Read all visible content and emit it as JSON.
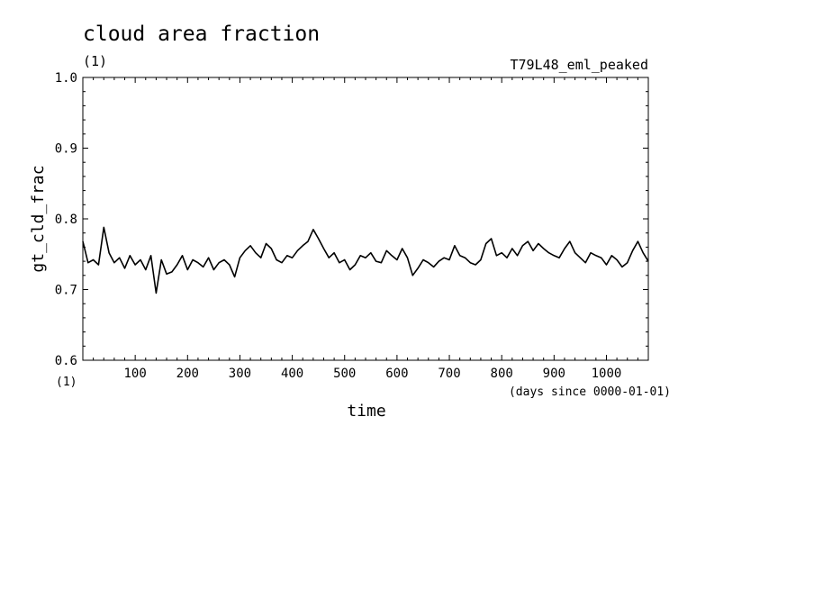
{
  "chart_data": {
    "type": "line",
    "title": "cloud area fraction",
    "units": "(1)",
    "experiment": "T79L48_eml_peaked",
    "ylabel": "gt_cld_frac",
    "y_units": "(1)",
    "xlabel": "time",
    "x_units": "(days since 0000-01-01)",
    "xlim": [
      0,
      1080
    ],
    "ylim": [
      0.6,
      1.0
    ],
    "x_ticks": [
      "100",
      "200",
      "300",
      "400",
      "500",
      "600",
      "700",
      "800",
      "900",
      "1000"
    ],
    "y_ticks": [
      "0.6",
      "0.7",
      "0.8",
      "0.9",
      "1.0"
    ],
    "grid": false,
    "series": [
      {
        "x": [
          0,
          10,
          20,
          30,
          40,
          50,
          60,
          70,
          80,
          90,
          100,
          110,
          120,
          130,
          140,
          150,
          160,
          170,
          180,
          190,
          200,
          210,
          220,
          230,
          240,
          250,
          260,
          270,
          280,
          290,
          300,
          310,
          320,
          330,
          340,
          350,
          360,
          370,
          380,
          390,
          400,
          410,
          420,
          430,
          440,
          450,
          460,
          470,
          480,
          490,
          500,
          510,
          520,
          530,
          540,
          550,
          560,
          570,
          580,
          590,
          600,
          610,
          620,
          630,
          640,
          650,
          660,
          670,
          680,
          690,
          700,
          710,
          720,
          730,
          740,
          750,
          760,
          770,
          780,
          790,
          800,
          810,
          820,
          830,
          840,
          850,
          860,
          870,
          880,
          890,
          900,
          910,
          920,
          930,
          940,
          950,
          960,
          970,
          980,
          990,
          1000,
          1010,
          1020,
          1030,
          1040,
          1050,
          1060,
          1070,
          1080
        ],
        "y": [
          0.768,
          0.738,
          0.742,
          0.735,
          0.788,
          0.752,
          0.738,
          0.745,
          0.73,
          0.748,
          0.735,
          0.742,
          0.728,
          0.748,
          0.695,
          0.742,
          0.722,
          0.725,
          0.735,
          0.748,
          0.728,
          0.742,
          0.738,
          0.732,
          0.745,
          0.728,
          0.738,
          0.742,
          0.735,
          0.718,
          0.745,
          0.755,
          0.762,
          0.752,
          0.745,
          0.765,
          0.758,
          0.742,
          0.738,
          0.748,
          0.745,
          0.755,
          0.762,
          0.768,
          0.785,
          0.772,
          0.758,
          0.745,
          0.752,
          0.738,
          0.742,
          0.728,
          0.735,
          0.748,
          0.745,
          0.752,
          0.74,
          0.738,
          0.755,
          0.748,
          0.742,
          0.758,
          0.745,
          0.72,
          0.73,
          0.742,
          0.738,
          0.732,
          0.74,
          0.745,
          0.742,
          0.762,
          0.748,
          0.745,
          0.738,
          0.735,
          0.742,
          0.765,
          0.772,
          0.748,
          0.752,
          0.745,
          0.758,
          0.748,
          0.762,
          0.768,
          0.755,
          0.765,
          0.758,
          0.752,
          0.748,
          0.745,
          0.758,
          0.768,
          0.752,
          0.745,
          0.738,
          0.752,
          0.748,
          0.745,
          0.735,
          0.748,
          0.742,
          0.732,
          0.738,
          0.755,
          0.768,
          0.752,
          0.74
        ]
      }
    ]
  }
}
